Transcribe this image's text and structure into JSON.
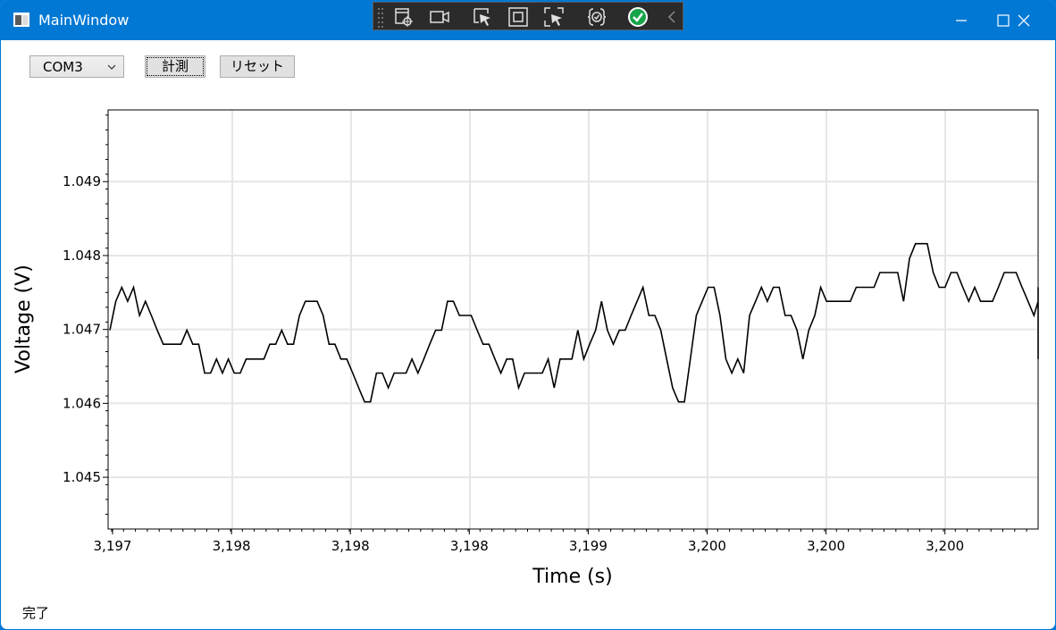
{
  "window": {
    "title": "MainWindow"
  },
  "toolbar": {
    "port_value": "COM3",
    "measure_label": "計測",
    "reset_label": "リセット"
  },
  "status": {
    "text": "完了"
  },
  "chart_data": {
    "type": "line",
    "xlabel": "Time (s)",
    "ylabel": "Voltage (V)",
    "x_tick_labels": [
      "3,197",
      "3,198",
      "3,198",
      "3,198",
      "3,199",
      "3,200",
      "3,200",
      "3,200"
    ],
    "y_ticks": [
      1.045,
      1.046,
      1.047,
      1.048,
      1.049
    ],
    "y_tick_labels": [
      "1.045",
      "1.046",
      "1.047",
      "1.048",
      "1.049"
    ],
    "ylim": [
      1.0443,
      1.04997
    ],
    "grid": true,
    "line_color": "#000000",
    "series": [
      {
        "values": [
          1.04699,
          1.04738,
          1.04757,
          1.04738,
          1.04757,
          1.04719,
          1.04738,
          1.04719,
          1.04699,
          1.0468,
          1.0468,
          1.0468,
          1.0468,
          1.04699,
          1.0468,
          1.0468,
          1.04641,
          1.04641,
          1.0466,
          1.04641,
          1.0466,
          1.04641,
          1.04641,
          1.0466,
          1.0466,
          1.0466,
          1.0466,
          1.0468,
          1.0468,
          1.04699,
          1.0468,
          1.0468,
          1.04719,
          1.04738,
          1.04738,
          1.04738,
          1.04719,
          1.0468,
          1.0468,
          1.0466,
          1.0466,
          1.04641,
          1.04621,
          1.04602,
          1.04602,
          1.04641,
          1.04641,
          1.04621,
          1.04641,
          1.04641,
          1.04641,
          1.0466,
          1.04641,
          1.0466,
          1.0468,
          1.04699,
          1.04699,
          1.04738,
          1.04738,
          1.04719,
          1.04719,
          1.04719,
          1.04699,
          1.0468,
          1.0468,
          1.0466,
          1.04641,
          1.0466,
          1.0466,
          1.04621,
          1.04641,
          1.04641,
          1.04641,
          1.04641,
          1.0466,
          1.04621,
          1.0466,
          1.0466,
          1.0466,
          1.04699,
          1.0466,
          1.0468,
          1.04699,
          1.04738,
          1.04699,
          1.0468,
          1.04699,
          1.04699,
          1.04719,
          1.04738,
          1.04757,
          1.04719,
          1.04719,
          1.04699,
          1.0466,
          1.04621,
          1.04602,
          1.04602,
          1.0466,
          1.04719,
          1.04738,
          1.04757,
          1.04757,
          1.04719,
          1.0466,
          1.04641,
          1.0466,
          1.04641,
          1.04719,
          1.04738,
          1.04757,
          1.04738,
          1.04757,
          1.04757,
          1.04719,
          1.04719,
          1.04699,
          1.0466,
          1.04699,
          1.04719,
          1.04757,
          1.04738,
          1.04738,
          1.04738,
          1.04738,
          1.04738,
          1.04757,
          1.04757,
          1.04757,
          1.04757,
          1.04777,
          1.04777,
          1.04777,
          1.04777,
          1.04738,
          1.04796,
          1.04816,
          1.04816,
          1.04816,
          1.04777,
          1.04757,
          1.04757,
          1.04777,
          1.04777,
          1.04757,
          1.04738,
          1.04757,
          1.04738,
          1.04738,
          1.04738,
          1.04757,
          1.04777,
          1.04777,
          1.04777,
          1.04757,
          1.04738,
          1.04719,
          1.04738,
          1.04757,
          1.04738,
          1.04757,
          1.04738,
          1.04738,
          1.04719,
          1.04719,
          1.04719,
          1.04719,
          1.0468,
          1.04699,
          1.04699,
          1.0468,
          1.0468,
          1.0466,
          1.0468,
          1.04699,
          1.04719,
          1.04719,
          1.04719,
          1.04699,
          1.04719
        ]
      }
    ]
  }
}
